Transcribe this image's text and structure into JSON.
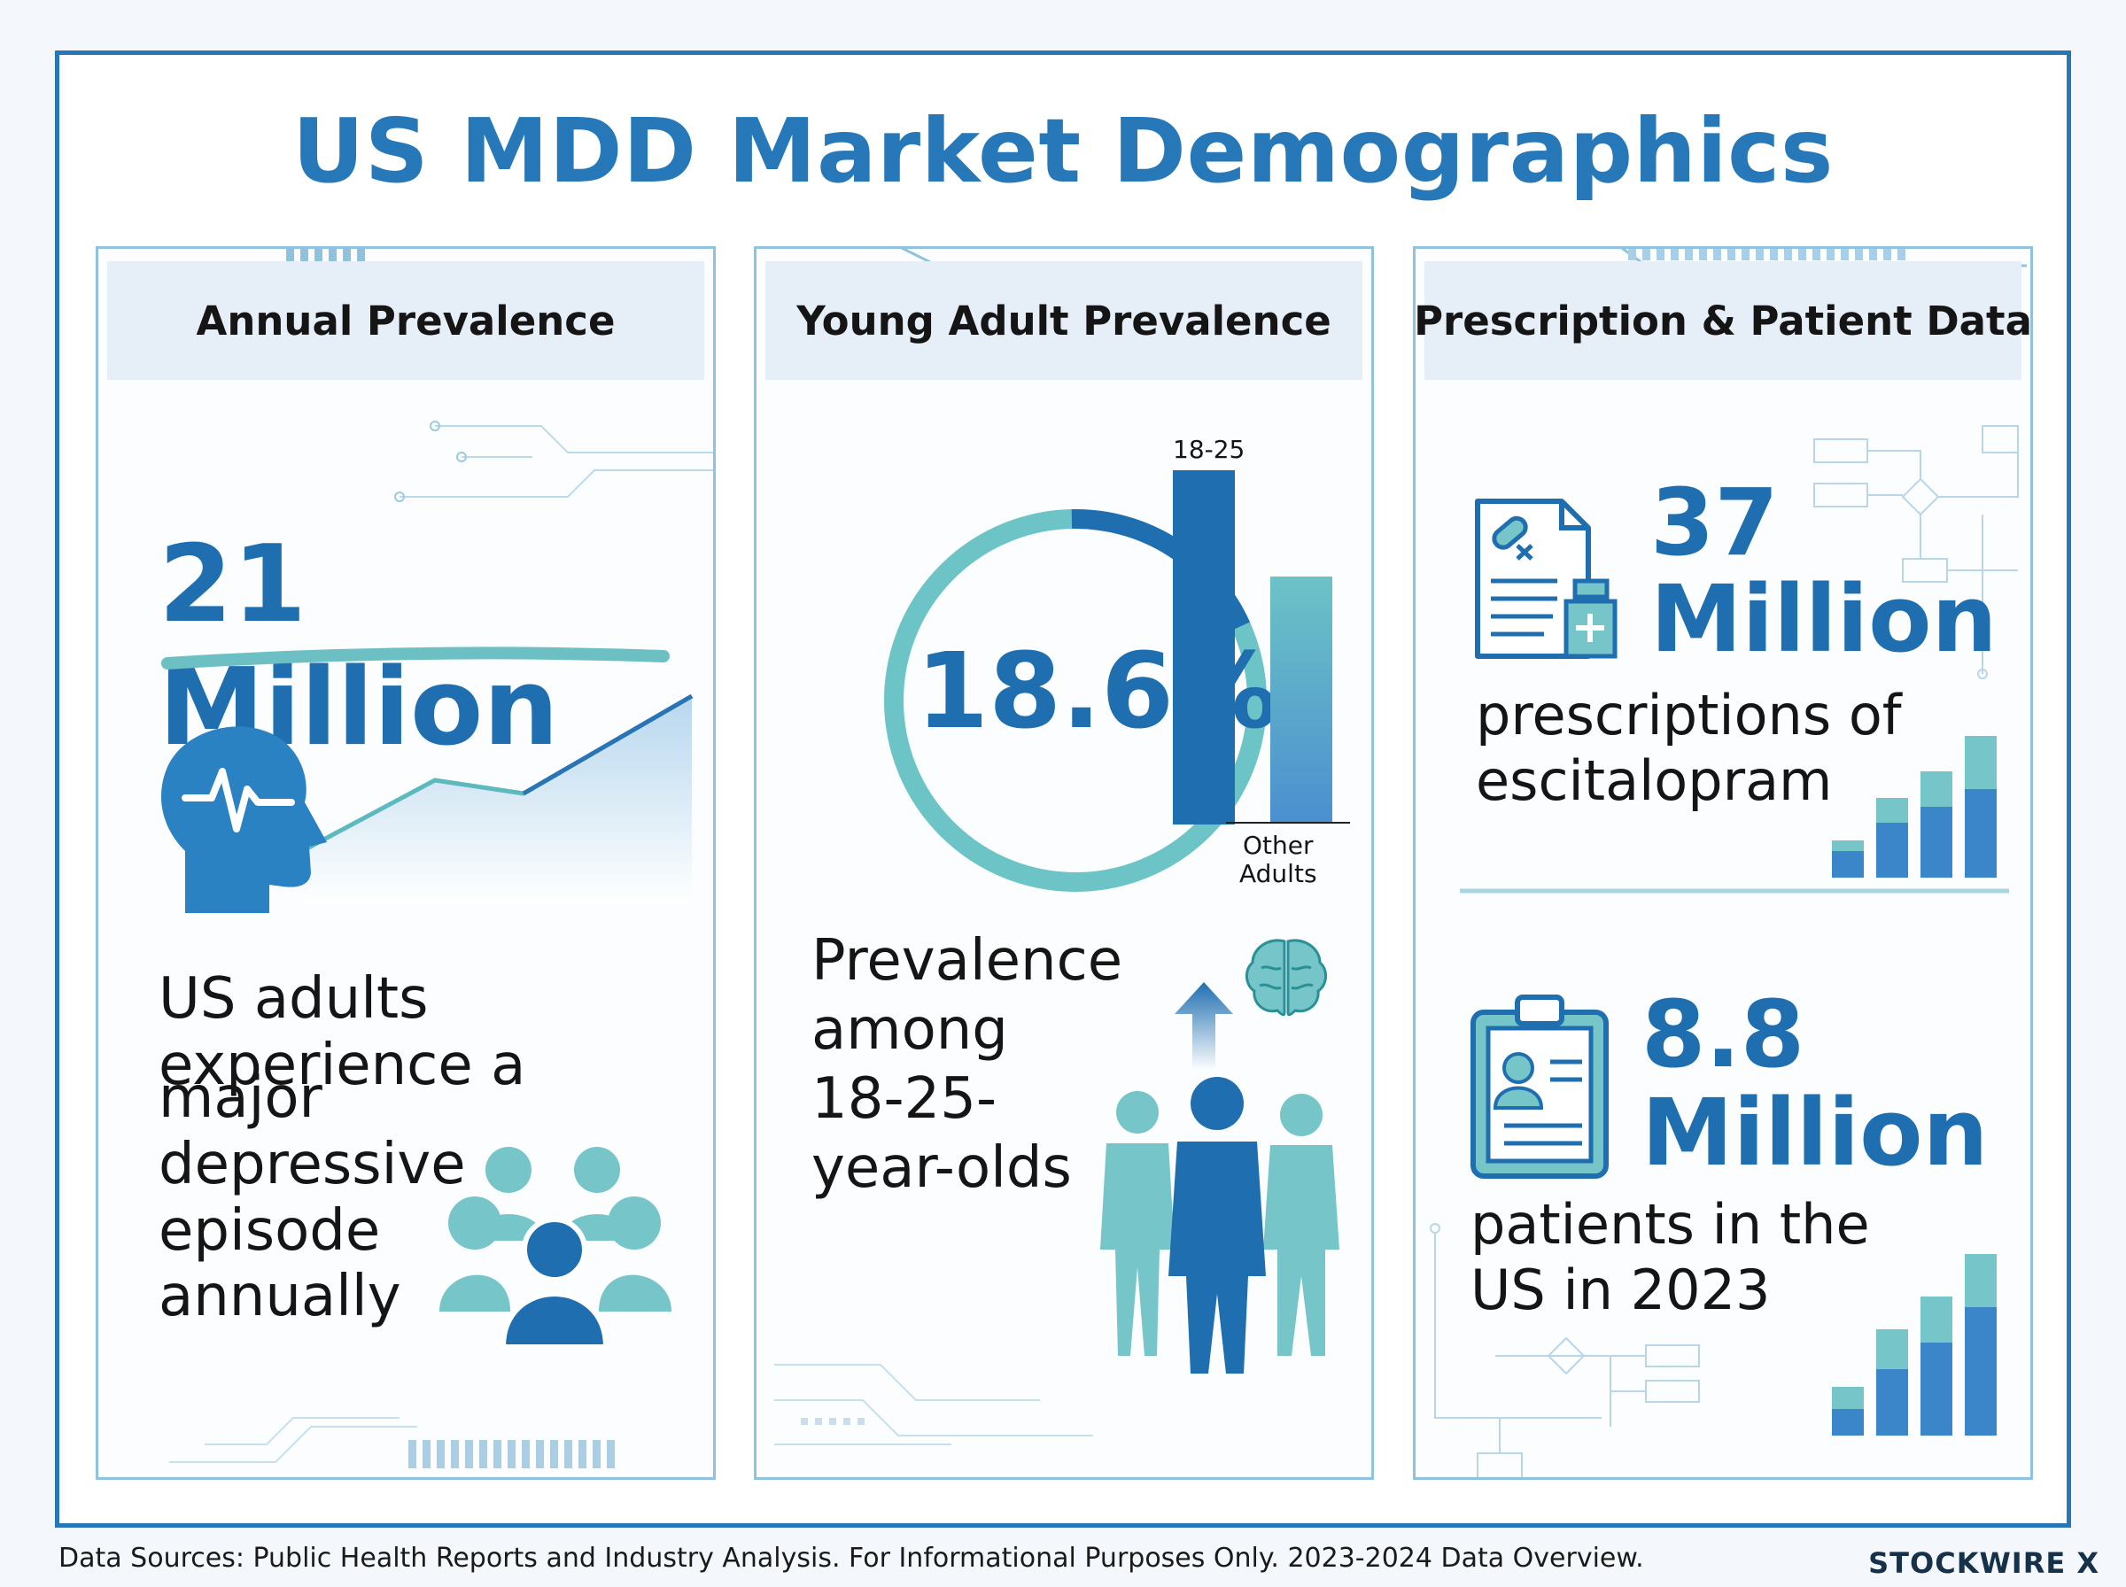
{
  "title": "US MDD Market Demographics",
  "colors": {
    "primary_blue": "#1f6fb0",
    "teal": "#76c5c8",
    "frame_blue": "#2776b6",
    "header_bg": "#e6eef7"
  },
  "panels": {
    "annual": {
      "header": "Annual Prevalence",
      "stat": "21 Million",
      "desc_lines": [
        "US adults",
        "experience a",
        "major",
        "depressive",
        "episode",
        "annually"
      ],
      "icons": [
        "head-pulse-icon",
        "group-icon"
      ]
    },
    "young": {
      "header": "Young Adult Prevalence",
      "stat": "18.6%",
      "stat_value": 18.6,
      "bar_label_top": "18-25",
      "bar_label_bottom_1": "Other",
      "bar_label_bottom_2": "Adults",
      "desc_lines": [
        "Prevalence",
        "among",
        "18-25-",
        "year-olds"
      ],
      "icons": [
        "brain-icon",
        "up-arrow-icon",
        "people-icon"
      ]
    },
    "rx": {
      "header": "Prescription & Patient Data",
      "stat1_line1": "37",
      "stat1_line2": "Million",
      "desc1_lines": [
        "prescriptions of",
        "escitalopram"
      ],
      "stat2_line1": "8.8",
      "stat2_line2": "Million",
      "desc2_lines": [
        "patients in the",
        "US in 2023"
      ],
      "icons": [
        "prescription-bottle-icon",
        "clipboard-patient-icon"
      ]
    }
  },
  "footer": {
    "source": "Data Sources: Public Health Reports and Industry Analysis. For Informational Purposes Only. 2023-2024 Data Overview.",
    "brand": "STOCKWIRE X"
  }
}
